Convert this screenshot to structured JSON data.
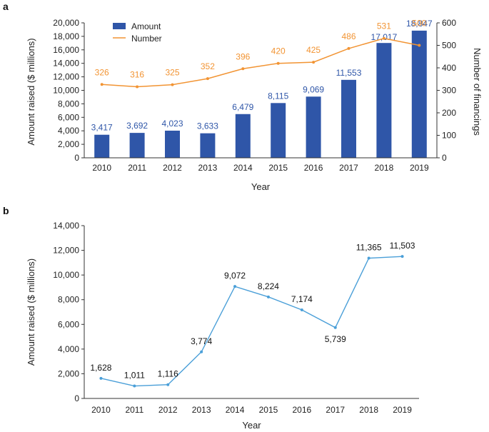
{
  "chart_data": [
    {
      "panel": "a",
      "type": "bar+line",
      "x": [
        "2010",
        "2011",
        "2012",
        "2013",
        "2014",
        "2015",
        "2016",
        "2017",
        "2018",
        "2019"
      ],
      "series": [
        {
          "name": "Amount",
          "type": "bar",
          "axis": "left",
          "color": "#2f56a8",
          "values": [
            3417,
            3692,
            4023,
            3633,
            6479,
            8115,
            9069,
            11553,
            17017,
            18847
          ],
          "labels": [
            "3,417",
            "3,692",
            "4,023",
            "3,633",
            "6,479",
            "8,115",
            "9,069",
            "11,553",
            "17,017",
            "18,847"
          ]
        },
        {
          "name": "Number",
          "type": "line",
          "axis": "right",
          "color": "#f29433",
          "values": [
            326,
            316,
            325,
            352,
            396,
            420,
            425,
            486,
            531,
            500
          ],
          "labels": [
            "326",
            "316",
            "325",
            "352",
            "396",
            "420",
            "425",
            "486",
            "531",
            "500"
          ]
        }
      ],
      "xlabel": "Year",
      "ylabel_left": "Amount raised ($ millions)",
      "ylabel_right": "Number of financings",
      "ylim_left": [
        0,
        20000
      ],
      "yticks_left": [
        "0",
        "2,000",
        "4,000",
        "6,000",
        "8,000",
        "10,000",
        "12,000",
        "14,000",
        "16,000",
        "18,000",
        "20,000"
      ],
      "ylim_right": [
        0,
        600
      ],
      "yticks_right": [
        "0",
        "100",
        "200",
        "300",
        "400",
        "500",
        "600"
      ],
      "legend": "top-left"
    },
    {
      "panel": "b",
      "type": "line",
      "x": [
        "2010",
        "2011",
        "2012",
        "2013",
        "2014",
        "2015",
        "2016",
        "2017",
        "2018",
        "2019"
      ],
      "series": [
        {
          "name": "Amount raised",
          "color": "#4a9fd8",
          "values": [
            1628,
            1011,
            1116,
            3774,
            9072,
            8224,
            7174,
            5739,
            11365,
            11503
          ],
          "labels": [
            "1,628",
            "1,011",
            "1,116",
            "3,774",
            "9,072",
            "8,224",
            "7,174",
            "5,739",
            "11,365",
            "11,503"
          ]
        }
      ],
      "xlabel": "Year",
      "ylabel": "Amount raised ($ millions)",
      "ylim": [
        0,
        14000
      ],
      "yticks": [
        "0",
        "2,000",
        "4,000",
        "6,000",
        "8,000",
        "10,000",
        "12,000",
        "14,000"
      ]
    }
  ]
}
